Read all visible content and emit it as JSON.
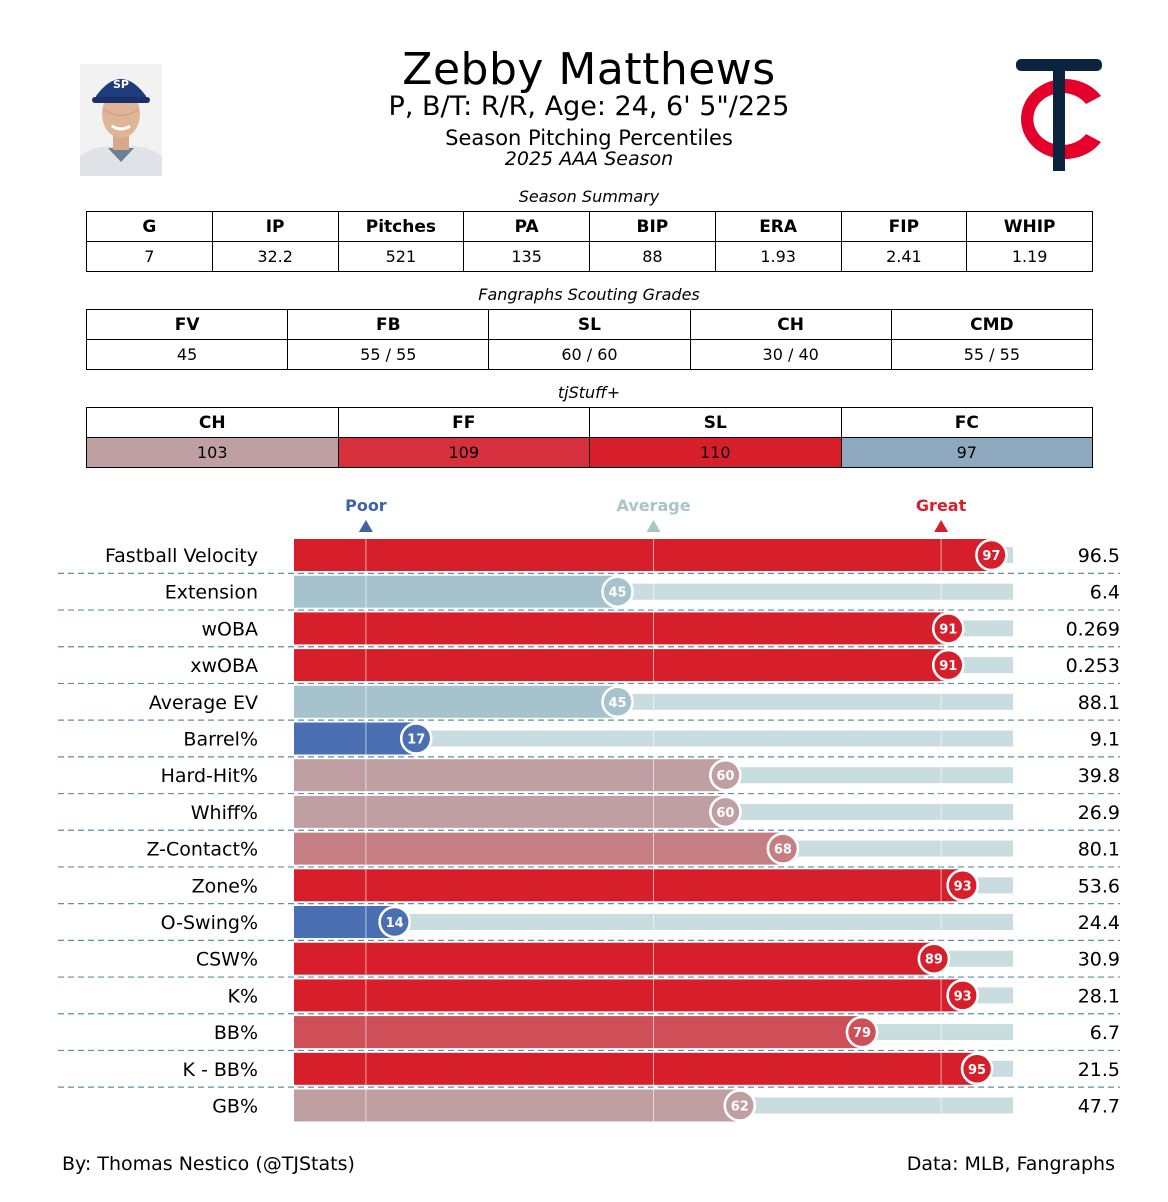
{
  "player": {
    "name": "Zebby Matthews",
    "bio": "P, B/T: R/R, Age: 24, 6' 5\"/225",
    "subtitle": "Season Pitching Percentiles",
    "season": "2025 AAA Season"
  },
  "season_summary": {
    "caption": "Season Summary",
    "headers": [
      "G",
      "IP",
      "Pitches",
      "PA",
      "BIP",
      "ERA",
      "FIP",
      "WHIP"
    ],
    "values": [
      "7",
      "32.2",
      "521",
      "135",
      "88",
      "1.93",
      "2.41",
      "1.19"
    ]
  },
  "scouting": {
    "caption": "Fangraphs Scouting Grades",
    "headers": [
      "FV",
      "FB",
      "SL",
      "CH",
      "CMD"
    ],
    "values": [
      "45",
      "55 / 55",
      "60 / 60",
      "30 / 40",
      "55 / 55"
    ]
  },
  "tjstuff": {
    "caption": "tjStuff+",
    "headers": [
      "CH",
      "FF",
      "SL",
      "FC"
    ],
    "values": [
      "103",
      "109",
      "110",
      "97"
    ],
    "colors": [
      "#bf9fa2",
      "#d6303e",
      "#d71f2c",
      "#8ea9bf"
    ]
  },
  "chart_data": {
    "type": "bar",
    "title": "Season Pitching Percentiles",
    "orientation": "horizontal",
    "xlim": [
      0,
      100
    ],
    "markers": [
      {
        "label": "Poor",
        "percentile": 10,
        "color": "#3e62a8"
      },
      {
        "label": "Average",
        "percentile": 50,
        "color": "#a8c5ca"
      },
      {
        "label": "Great",
        "percentile": 90,
        "color": "#d71f2c"
      }
    ],
    "categories": [
      "Fastball Velocity",
      "Extension",
      "wOBA",
      "xwOBA",
      "Average EV",
      "Barrel%",
      "Hard-Hit%",
      "Whiff%",
      "Z-Contact%",
      "Zone%",
      "O-Swing%",
      "CSW%",
      "K%",
      "BB%",
      "K - BB%",
      "GB%"
    ],
    "percentiles": [
      97,
      45,
      91,
      91,
      45,
      17,
      60,
      60,
      68,
      93,
      14,
      89,
      93,
      79,
      95,
      62
    ],
    "values": [
      "96.5",
      "6.4",
      "0.269",
      "0.253",
      "88.1",
      "9.1",
      "39.8",
      "26.9",
      "80.1",
      "53.6",
      "24.4",
      "30.9",
      "28.1",
      "6.7",
      "21.5",
      "47.7"
    ],
    "colors": [
      "#d71f2c",
      "#a6c2cc",
      "#d71f2c",
      "#d71f2c",
      "#a6c2cc",
      "#4a70b3",
      "#bf9fa2",
      "#bf9fa2",
      "#c57f84",
      "#d71f2c",
      "#4a70b3",
      "#d71f2c",
      "#d71f2c",
      "#ce4f57",
      "#d71f2c",
      "#bf9fa2"
    ]
  },
  "footer": {
    "author": "By: Thomas Nestico (@TJStats)",
    "source": "Data: MLB, Fangraphs"
  }
}
